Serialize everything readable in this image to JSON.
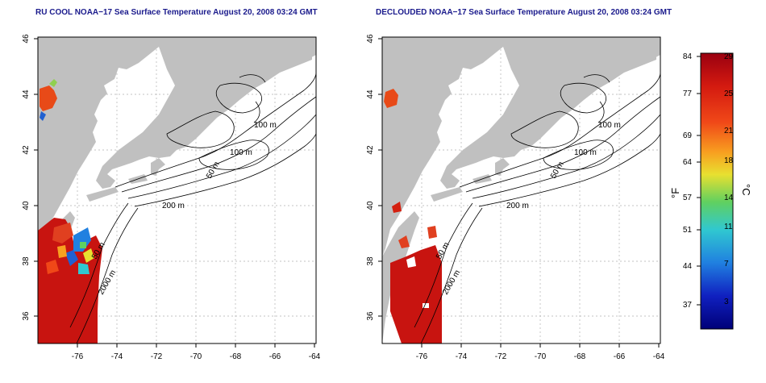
{
  "panels": [
    {
      "id": "left",
      "title": "RU COOL NOAA−17 Sea Surface Temperature August 20, 2008 03:24 GMT",
      "x_ticks": [
        "-76",
        "-74",
        "-72",
        "-70",
        "-68",
        "-66",
        "-64"
      ],
      "y_ticks": [
        "36",
        "38",
        "40",
        "42",
        "44",
        "46"
      ],
      "contour_labels": [
        "100 m",
        "100 m",
        "50 m",
        "200 m",
        "50 m",
        "2000 m"
      ]
    },
    {
      "id": "right",
      "title": "DECLOUDED NOAA−17 Sea Surface Temperature August 20, 2008 03:24 GMT",
      "x_ticks": [
        "-76",
        "-74",
        "-72",
        "-70",
        "-68",
        "-66",
        "-64"
      ],
      "y_ticks": [
        "36",
        "38",
        "40",
        "42",
        "44",
        "46"
      ],
      "contour_labels": [
        "100 m",
        "100 m",
        "50 m",
        "200 m",
        "50 m",
        "2000 m"
      ]
    }
  ],
  "colorbar": {
    "fahrenheit_ticks": [
      "84",
      "77",
      "69",
      "64",
      "57",
      "51",
      "44",
      "37"
    ],
    "celsius_ticks": [
      "29",
      "25",
      "21",
      "18",
      "14",
      "11",
      "7",
      "3"
    ],
    "fahrenheit_unit": "°F",
    "celsius_unit": "°C",
    "colors": [
      "#a00010",
      "#d42010",
      "#f05020",
      "#f8a020",
      "#e8e030",
      "#60d060",
      "#30c0d0",
      "#2080e0",
      "#1020c0",
      "#000080"
    ]
  }
}
